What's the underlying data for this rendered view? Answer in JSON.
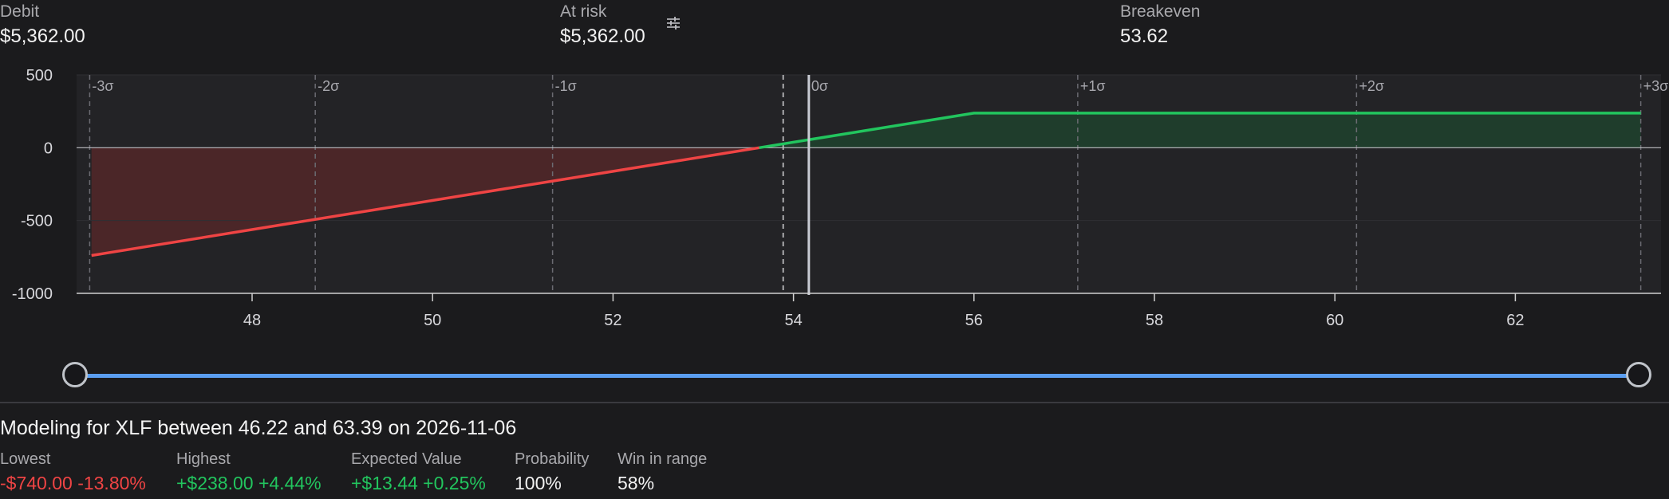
{
  "stats": {
    "debit": {
      "label": "Debit",
      "value": "$5,362.00"
    },
    "at_risk": {
      "label": "At risk",
      "value": "$5,362.00"
    },
    "breakeven": {
      "label": "Breakeven",
      "value": "53.62"
    }
  },
  "icons": {
    "settings": "sliders-icon"
  },
  "chart_data": {
    "type": "area",
    "x_ticks": [
      48,
      50,
      52,
      54,
      56,
      58,
      60,
      62
    ],
    "y_ticks": [
      500,
      0,
      -500,
      -1000
    ],
    "xlim": [
      44.3,
      63.8
    ],
    "ylim": [
      -1000,
      500
    ],
    "sigma_lines": [
      {
        "label": "-3σ",
        "x": 46.2
      },
      {
        "label": "-2σ",
        "x": 48.7
      },
      {
        "label": "-1σ",
        "x": 51.33
      },
      {
        "label": "0σ",
        "x": 54.17
      },
      {
        "label": "+1σ",
        "x": 57.15
      },
      {
        "label": "+2σ",
        "x": 60.24
      },
      {
        "label": "+3σ",
        "x": 63.39
      }
    ],
    "breakeven": 53.62,
    "current_price": 54.17,
    "payoff": {
      "x": [
        46.22,
        53.62,
        56.0,
        63.39
      ],
      "y": [
        -740,
        0,
        238,
        238
      ]
    },
    "colors": {
      "loss": "#ef4444",
      "profit": "#22c55e",
      "loss_fill": "#4b2628",
      "profit_fill": "#1f3d2c",
      "grid": "#2f2f33",
      "axis": "#d0d0d0",
      "sigma": "#6b6b72",
      "price": "#c9ccd4"
    }
  },
  "slider": {
    "min": 46.22,
    "max": 63.39
  },
  "modeling": {
    "title": "Modeling for XLF between 46.22 and 63.39 on 2026-11-06"
  },
  "metrics": {
    "lowest": {
      "label": "Lowest",
      "value": "-$740.00 -13.80%"
    },
    "highest": {
      "label": "Highest",
      "value": "+$238.00 +4.44%"
    },
    "expected": {
      "label": "Expected Value",
      "value": "+$13.44 +0.25%"
    },
    "probability": {
      "label": "Probability",
      "value": "100%"
    },
    "win": {
      "label": "Win in range",
      "value": "58%"
    }
  }
}
